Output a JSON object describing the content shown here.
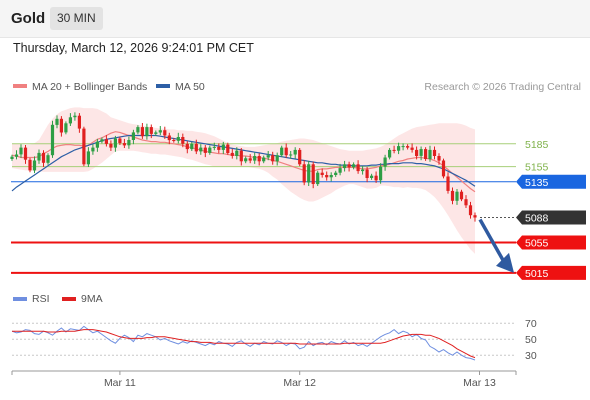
{
  "header": {
    "title": "Gold",
    "timeframe": "30 MIN"
  },
  "datetime": "Thursday, March 12, 2026 9:24:01 PM CET",
  "legend": {
    "items": [
      {
        "label": "MA 20 + Bollinger Bands",
        "color": "#f08080"
      },
      {
        "label": "MA 50",
        "color": "#2d5fa6"
      }
    ],
    "credit": "Research © 2026 Trading Central"
  },
  "rsi_legend": {
    "items": [
      {
        "label": "RSI",
        "color": "#6f8fe0"
      },
      {
        "label": "9MA",
        "color": "#e02020"
      }
    ]
  },
  "colors": {
    "up": "#2e9e45",
    "down": "#e02020",
    "blue_level": "#1a66e0",
    "red_level": "#ee1111",
    "green_level": "#a7cf79",
    "current": "#333333",
    "arrow": "#2f5aa0",
    "band": "#fde3e3"
  },
  "chart_data": [
    {
      "type": "line",
      "x_tick_labels": [
        "Mar 11",
        "Mar 12",
        "Mar 13"
      ],
      "x_tick_bar_index": [
        24,
        64,
        104
      ],
      "price_range": [
        5003,
        5248
      ],
      "levels": [
        {
          "label": "5185",
          "value": 5185,
          "kind": "green"
        },
        {
          "label": "5155",
          "value": 5155,
          "kind": "green"
        },
        {
          "label": "5135",
          "value": 5135,
          "kind": "blue"
        },
        {
          "label": "5088",
          "value": 5088,
          "kind": "current"
        },
        {
          "label": "5055",
          "value": 5055,
          "kind": "red"
        },
        {
          "label": "5015",
          "value": 5015,
          "kind": "red"
        }
      ],
      "close": [
        5168,
        5171,
        5180,
        5164,
        5150,
        5163,
        5173,
        5160,
        5170,
        5210,
        5218,
        5200,
        5212,
        5220,
        5222,
        5205,
        5158,
        5175,
        5180,
        5188,
        5191,
        5185,
        5180,
        5192,
        5186,
        5183,
        5190,
        5200,
        5207,
        5195,
        5207,
        5198,
        5200,
        5203,
        5196,
        5190,
        5189,
        5194,
        5185,
        5178,
        5185,
        5175,
        5180,
        5173,
        5180,
        5181,
        5177,
        5184,
        5173,
        5169,
        5176,
        5162,
        5166,
        5163,
        5169,
        5162,
        5167,
        5170,
        5162,
        5170,
        5180,
        5170,
        5171,
        5177,
        5158,
        5134,
        5158,
        5132,
        5147,
        5144,
        5141,
        5144,
        5147,
        5153,
        5158,
        5154,
        5158,
        5149,
        5151,
        5140,
        5143,
        5137,
        5155,
        5167,
        5177,
        5176,
        5182,
        5182,
        5180,
        5177,
        5169,
        5178,
        5165,
        5177,
        5169,
        5163,
        5142,
        5123,
        5110,
        5122,
        5112,
        5104,
        5091,
        5088
      ],
      "ma20": [
        5170,
        5169,
        5167,
        5167,
        5167,
        5167,
        5168,
        5172,
        5175,
        5179,
        5182,
        5183,
        5184,
        5184,
        5183,
        5183,
        5182,
        5183,
        5187,
        5191,
        5193,
        5196,
        5199,
        5201,
        5200,
        5198,
        5196,
        5194,
        5192,
        5190,
        5189,
        5188,
        5188,
        5187,
        5187,
        5186,
        5185,
        5184,
        5183,
        5181,
        5180,
        5178,
        5177,
        5175,
        5174,
        5173,
        5172,
        5172,
        5171,
        5170,
        5170,
        5169,
        5169,
        5168,
        5167,
        5167,
        5166,
        5165,
        5163,
        5162,
        5160,
        5158,
        5156,
        5154,
        5152,
        5150,
        5149,
        5149,
        5151,
        5152,
        5152,
        5153,
        5154,
        5154,
        5154,
        5154,
        5154,
        5153,
        5152,
        5152,
        5153,
        5154,
        5156,
        5157,
        5158,
        5160,
        5162,
        5163,
        5165,
        5166,
        5167,
        5167,
        5166,
        5165,
        5163,
        5160,
        5156,
        5151,
        5146,
        5141,
        5136,
        5131,
        5126,
        5122
      ],
      "bb_upper": [
        5185,
        5185,
        5184,
        5184,
        5184,
        5186,
        5190,
        5200,
        5210,
        5218,
        5224,
        5228,
        5230,
        5232,
        5233,
        5233,
        5232,
        5232,
        5232,
        5231,
        5228,
        5225,
        5220,
        5218,
        5216,
        5214,
        5212,
        5211,
        5210,
        5209,
        5208,
        5207,
        5206,
        5205,
        5205,
        5204,
        5204,
        5203,
        5203,
        5202,
        5202,
        5201,
        5200,
        5199,
        5197,
        5195,
        5192,
        5189,
        5186,
        5184,
        5183,
        5182,
        5181,
        5181,
        5181,
        5182,
        5183,
        5184,
        5185,
        5186,
        5188,
        5189,
        5190,
        5191,
        5192,
        5192,
        5191,
        5190,
        5188,
        5186,
        5184,
        5182,
        5180,
        5178,
        5177,
        5176,
        5176,
        5176,
        5176,
        5177,
        5178,
        5179,
        5181,
        5184,
        5188,
        5192,
        5196,
        5199,
        5202,
        5205,
        5207,
        5208,
        5209,
        5210,
        5211,
        5212,
        5212,
        5212,
        5212,
        5212,
        5211,
        5209,
        5206,
        5204
      ],
      "bb_lower": [
        5153,
        5152,
        5151,
        5150,
        5150,
        5149,
        5149,
        5148,
        5148,
        5148,
        5148,
        5148,
        5148,
        5148,
        5148,
        5148,
        5148,
        5149,
        5152,
        5156,
        5160,
        5165,
        5170,
        5175,
        5176,
        5176,
        5176,
        5176,
        5175,
        5174,
        5173,
        5172,
        5172,
        5171,
        5171,
        5170,
        5169,
        5168,
        5167,
        5165,
        5164,
        5162,
        5160,
        5158,
        5157,
        5155,
        5155,
        5155,
        5155,
        5155,
        5155,
        5155,
        5155,
        5154,
        5153,
        5152,
        5150,
        5147,
        5142,
        5138,
        5132,
        5127,
        5122,
        5118,
        5114,
        5111,
        5109,
        5109,
        5111,
        5114,
        5117,
        5120,
        5124,
        5127,
        5130,
        5132,
        5132,
        5130,
        5128,
        5126,
        5126,
        5127,
        5130,
        5130,
        5129,
        5128,
        5128,
        5127,
        5128,
        5127,
        5127,
        5126,
        5124,
        5120,
        5115,
        5108,
        5100,
        5091,
        5081,
        5071,
        5062,
        5054,
        5046,
        5040
      ],
      "ma50": [
        5123,
        5128,
        5132,
        5136,
        5140,
        5144,
        5148,
        5152,
        5156,
        5160,
        5164,
        5168,
        5171,
        5174,
        5177,
        5179,
        5181,
        5183,
        5185,
        5187,
        5189,
        5191,
        5192,
        5193,
        5194,
        5195,
        5196,
        5196,
        5196,
        5196,
        5196,
        5196,
        5196,
        5195,
        5194,
        5193,
        5192,
        5191,
        5190,
        5189,
        5188,
        5187,
        5186,
        5185,
        5184,
        5183,
        5182,
        5181,
        5180,
        5179,
        5178,
        5177,
        5176,
        5175,
        5174,
        5173,
        5172,
        5171,
        5170,
        5169,
        5168,
        5167,
        5166,
        5165,
        5164,
        5163,
        5162,
        5161,
        5160,
        5160,
        5159,
        5158,
        5158,
        5157,
        5157,
        5157,
        5156,
        5156,
        5156,
        5156,
        5157,
        5157,
        5158,
        5158,
        5159,
        5159,
        5159,
        5160,
        5160,
        5160,
        5159,
        5159,
        5158,
        5157,
        5156,
        5154,
        5152,
        5149,
        5146,
        5143,
        5140,
        5137,
        5133,
        5129
      ]
    },
    {
      "type": "line",
      "name": "RSI",
      "y_tick_labels": [
        "70",
        "50",
        "30"
      ],
      "y_ticks": [
        70,
        50,
        30
      ],
      "y_range": [
        14,
        84
      ],
      "rsi": [
        60,
        58,
        59,
        62,
        61,
        57,
        56,
        60,
        58,
        55,
        60,
        64,
        59,
        63,
        62,
        61,
        66,
        62,
        58,
        60,
        56,
        52,
        48,
        45,
        51,
        55,
        52,
        47,
        55,
        53,
        57,
        55,
        53,
        49,
        51,
        48,
        46,
        44,
        47,
        45,
        48,
        46,
        44,
        42,
        45,
        43,
        47,
        45,
        44,
        41,
        46,
        48,
        44,
        41,
        45,
        43,
        47,
        45,
        44,
        48,
        46,
        42,
        45,
        44,
        38,
        40,
        47,
        42,
        45,
        46,
        43,
        47,
        45,
        44,
        48,
        44,
        46,
        42,
        44,
        41,
        45,
        49,
        53,
        56,
        58,
        62,
        57,
        60,
        58,
        53,
        56,
        51,
        49,
        41,
        38,
        34,
        37,
        33,
        30,
        34,
        30,
        27,
        26,
        24
      ],
      "rsi_ma9": [
        60,
        60,
        60,
        60,
        60,
        60,
        60,
        60,
        59,
        59,
        59,
        60,
        60,
        60,
        60,
        61,
        62,
        62,
        62,
        61,
        60,
        59,
        57,
        55,
        53,
        52,
        51,
        51,
        51,
        51,
        52,
        52,
        53,
        53,
        53,
        52,
        51,
        50,
        49,
        48,
        47,
        47,
        46,
        46,
        46,
        45,
        45,
        45,
        45,
        45,
        45,
        45,
        45,
        45,
        45,
        45,
        45,
        45,
        45,
        45,
        45,
        45,
        45,
        45,
        44,
        44,
        44,
        44,
        44,
        44,
        44,
        44,
        44,
        44,
        45,
        45,
        45,
        45,
        45,
        45,
        45,
        45,
        45,
        46,
        48,
        50,
        52,
        54,
        55,
        56,
        56,
        56,
        55,
        55,
        53,
        51,
        48,
        45,
        42,
        38,
        35,
        32,
        29,
        27
      ]
    }
  ]
}
